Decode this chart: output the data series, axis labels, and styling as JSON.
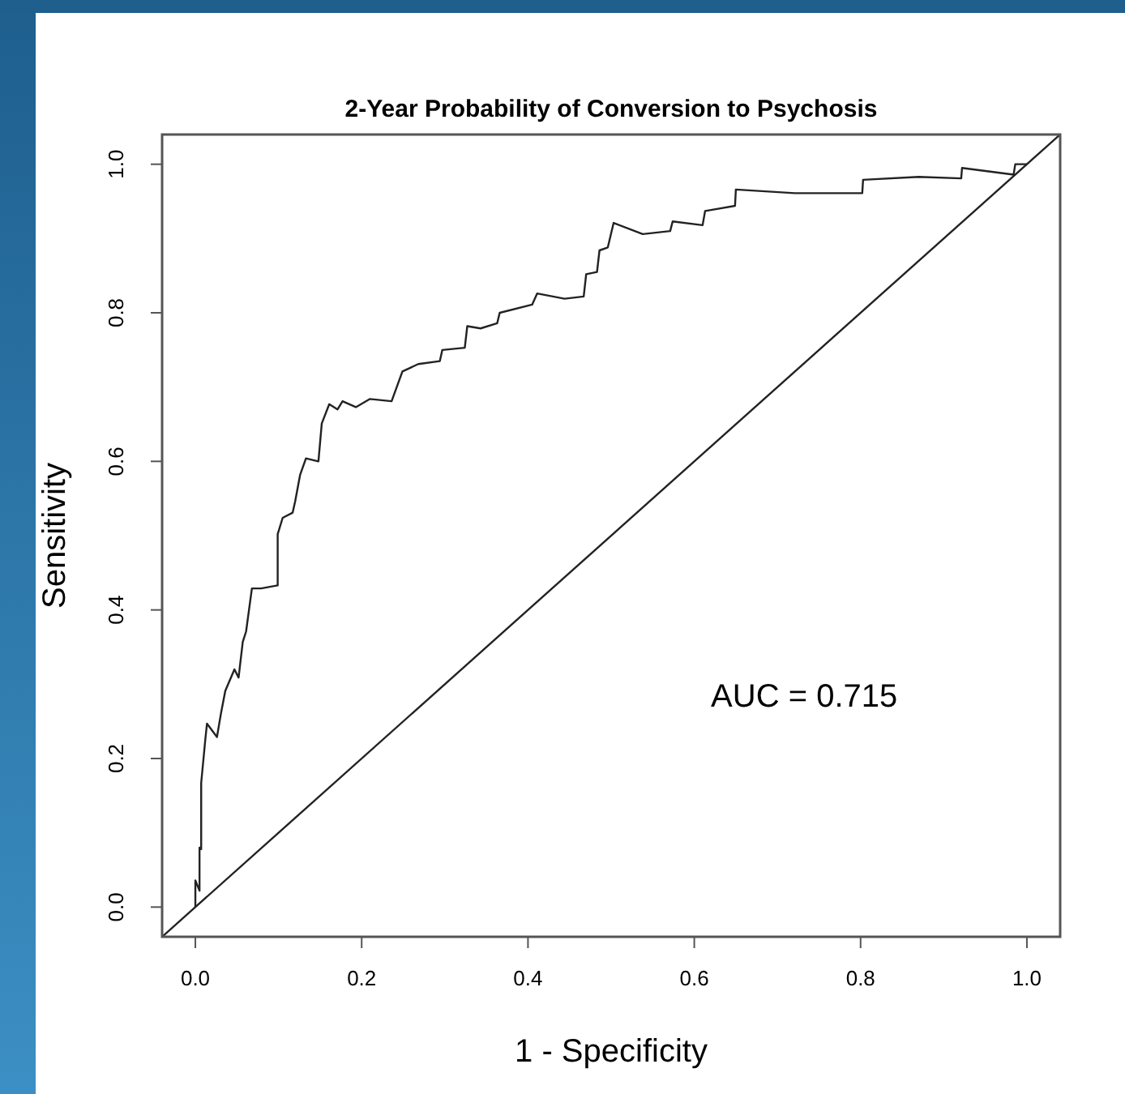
{
  "chart_data": {
    "type": "line",
    "title": "2-Year Probability of Conversion to Psychosis",
    "xlabel": "1 - Specificity",
    "ylabel": "Sensitivity",
    "xlim": [
      -0.04,
      1.04
    ],
    "ylim": [
      -0.04,
      1.04
    ],
    "xticks": [
      {
        "value": 0,
        "label": "0.0"
      },
      0.2,
      0.4,
      0.6,
      0.8,
      {
        "value": 1,
        "label": "1.0"
      }
    ],
    "yticks": [
      {
        "value": 0,
        "label": "0.0"
      },
      0.2,
      0.4,
      0.6,
      0.8,
      {
        "value": 1,
        "label": "1.0"
      }
    ],
    "grid": false,
    "marker": "none",
    "line_style": "solid",
    "annotations": [
      "AUC = 0.715"
    ],
    "series": [
      {
        "color": "#222222",
        "x": [
          0,
          0,
          0.005,
          0.005,
          0.007,
          0.007,
          0.012,
          0.014,
          0.026,
          0.031,
          0.036,
          0.047,
          0.052,
          0.057,
          0.061,
          0.068,
          0.079,
          0.099,
          0.099,
          0.105,
          0.117,
          0.12,
          0.126,
          0.133,
          0.148,
          0.152,
          0.161,
          0.171,
          0.177,
          0.193,
          0.21,
          0.236,
          0.249,
          0.268,
          0.294,
          0.297,
          0.324,
          0.327,
          0.343,
          0.363,
          0.366,
          0.405,
          0.411,
          0.444,
          0.467,
          0.47,
          0.483,
          0.486,
          0.496,
          0.503,
          0.538,
          0.571,
          0.574,
          0.61,
          0.613,
          0.649,
          0.65,
          0.721,
          0.802,
          0.803,
          0.87,
          0.921,
          0.922,
          0.984,
          0.986,
          0.997,
          1
        ],
        "values": [
          0,
          0.036,
          0.022,
          0.08,
          0.078,
          0.167,
          0.226,
          0.247,
          0.229,
          0.262,
          0.291,
          0.32,
          0.309,
          0.357,
          0.371,
          0.429,
          0.429,
          0.433,
          0.502,
          0.524,
          0.531,
          0.546,
          0.582,
          0.604,
          0.6,
          0.651,
          0.677,
          0.67,
          0.681,
          0.673,
          0.684,
          0.681,
          0.721,
          0.731,
          0.735,
          0.75,
          0.753,
          0.782,
          0.779,
          0.786,
          0.8,
          0.811,
          0.826,
          0.819,
          0.822,
          0.852,
          0.855,
          0.884,
          0.888,
          0.921,
          0.906,
          0.91,
          0.923,
          0.918,
          0.937,
          0.944,
          0.966,
          0.961,
          0.961,
          0.979,
          0.983,
          0.981,
          0.995,
          0.986,
          1,
          1,
          1
        ]
      },
      {
        "color": "#222222",
        "x": [
          -0.04,
          1.04
        ],
        "values": [
          -0.04,
          1.04
        ]
      }
    ]
  }
}
